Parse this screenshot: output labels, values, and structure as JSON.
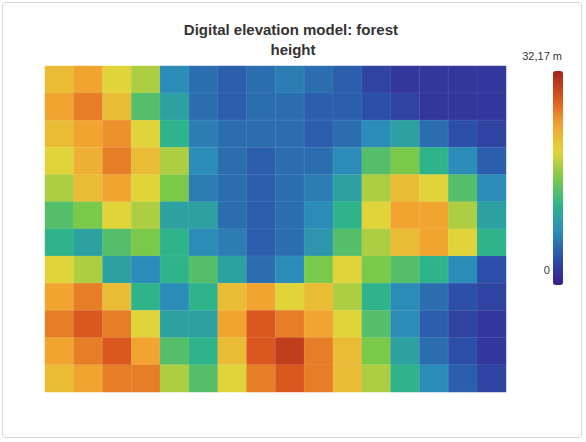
{
  "chart_data": {
    "type": "heatmap",
    "title": "Digital elevation model: forest height",
    "tick_labels": false,
    "cells": [
      [
        22,
        24,
        20,
        18,
        8,
        6,
        5,
        6,
        7,
        6,
        5,
        3,
        2,
        2,
        2,
        2
      ],
      [
        24,
        26,
        22,
        14,
        10,
        6,
        5,
        6,
        6,
        5,
        5,
        4,
        3,
        2,
        2,
        2
      ],
      [
        22,
        24,
        25,
        20,
        12,
        7,
        6,
        6,
        6,
        5,
        6,
        8,
        10,
        6,
        4,
        3
      ],
      [
        20,
        23,
        26,
        22,
        18,
        8,
        6,
        5,
        6,
        6,
        8,
        14,
        16,
        12,
        8,
        5
      ],
      [
        18,
        22,
        24,
        20,
        16,
        7,
        6,
        5,
        6,
        7,
        10,
        18,
        22,
        20,
        14,
        8
      ],
      [
        14,
        16,
        20,
        18,
        10,
        10,
        6,
        5,
        6,
        8,
        12,
        20,
        24,
        24,
        18,
        10
      ],
      [
        12,
        10,
        14,
        16,
        12,
        8,
        7,
        5,
        6,
        9,
        14,
        18,
        22,
        24,
        20,
        12
      ],
      [
        20,
        18,
        10,
        8,
        12,
        14,
        10,
        6,
        8,
        16,
        20,
        16,
        14,
        12,
        8,
        4
      ],
      [
        24,
        26,
        22,
        12,
        8,
        12,
        22,
        24,
        20,
        22,
        18,
        12,
        8,
        6,
        4,
        3
      ],
      [
        26,
        28,
        26,
        20,
        10,
        10,
        24,
        28,
        26,
        24,
        20,
        14,
        8,
        5,
        3,
        2
      ],
      [
        24,
        26,
        28,
        24,
        14,
        12,
        22,
        28,
        30,
        26,
        22,
        16,
        10,
        6,
        4,
        2
      ],
      [
        22,
        24,
        26,
        26,
        18,
        14,
        20,
        26,
        28,
        26,
        22,
        18,
        12,
        8,
        5,
        3
      ]
    ],
    "color_range": [
      0,
      32.17
    ],
    "color_ticks": [
      {
        "value": 32.17,
        "label": "32,17 m"
      },
      {
        "value": 0,
        "label": "0 m"
      }
    ]
  }
}
